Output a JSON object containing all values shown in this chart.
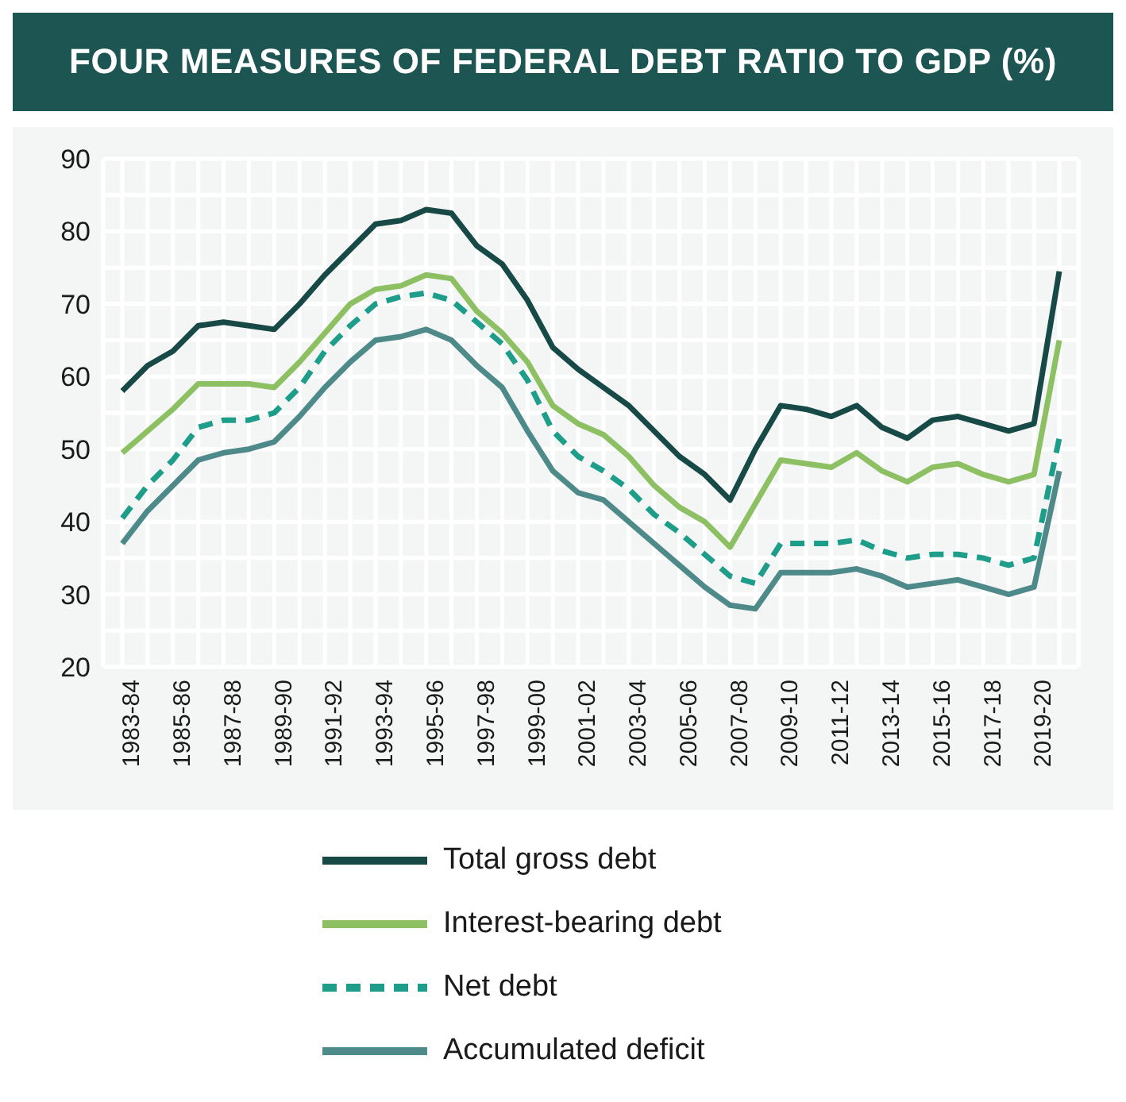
{
  "chart_data": {
    "type": "line",
    "title": "FOUR MEASURES OF FEDERAL DEBT RATIO TO GDP (%)",
    "categories": [
      "1983-84",
      null,
      "1985-86",
      null,
      "1987-88",
      null,
      "1989-90",
      null,
      "1991-92",
      null,
      "1993-94",
      null,
      "1995-96",
      null,
      "1997-98",
      null,
      "1999-00",
      null,
      "2001-02",
      null,
      "2003-04",
      null,
      "2005-06",
      null,
      "2007-08",
      null,
      "2009-10",
      null,
      "2011-12",
      null,
      "2013-14",
      null,
      "2015-16",
      null,
      "2017-18",
      null,
      "2019-20",
      null
    ],
    "series": [
      {
        "name": "Total gross debt",
        "color": "#174a47",
        "line_style": "solid",
        "values": [
          58,
          61.5,
          63.5,
          67,
          67.5,
          67,
          66.5,
          70,
          74,
          77.5,
          81,
          81.5,
          83,
          82.5,
          78,
          75.5,
          70.5,
          64,
          61,
          58.5,
          56,
          52.5,
          49,
          46.5,
          43,
          50,
          56,
          55.5,
          54.5,
          56,
          53,
          51.5,
          54,
          54.5,
          53.5,
          52.5,
          53.5,
          74.5
        ]
      },
      {
        "name": "Interest-bearing debt",
        "color": "#8dc063",
        "line_style": "solid",
        "values": [
          49.5,
          52.5,
          55.5,
          59,
          59,
          59,
          58.5,
          62,
          66,
          70,
          72,
          72.5,
          74,
          73.5,
          69,
          66,
          62,
          56,
          53.5,
          52,
          49,
          45,
          42,
          40,
          36.5,
          42.5,
          48.5,
          48,
          47.5,
          49.5,
          47,
          45.5,
          47.5,
          48,
          46.5,
          45.5,
          46.5,
          65
        ]
      },
      {
        "name": "Net debt",
        "color": "#1e9e8a",
        "line_style": "dashed",
        "values": [
          40.5,
          45,
          48.5,
          53,
          54,
          54,
          55,
          58.5,
          63.5,
          67,
          70,
          71,
          71.5,
          70.5,
          67.5,
          64.5,
          59.5,
          52.5,
          49,
          47,
          44.5,
          41,
          38.5,
          35.5,
          32.5,
          31.5,
          37,
          37,
          37,
          37.5,
          36,
          35,
          35.5,
          35.5,
          35,
          34,
          35,
          51.5
        ]
      },
      {
        "name": "Accumulated deficit",
        "color": "#4e8a8a",
        "line_style": "solid",
        "values": [
          37,
          41.5,
          45,
          48.5,
          49.5,
          50,
          51,
          54.5,
          58.5,
          62,
          65,
          65.5,
          66.5,
          65,
          61.5,
          58.5,
          52.5,
          47,
          44,
          43,
          40,
          37,
          34,
          31,
          28.5,
          28,
          33,
          33,
          33,
          33.5,
          32.5,
          31,
          31.5,
          32,
          31,
          30,
          31,
          47
        ]
      }
    ],
    "ylim": [
      20,
      90
    ],
    "yticks": [
      20,
      {
        "value": 25,
        "label": null
      },
      30,
      {
        "value": 35,
        "label": null
      },
      40,
      {
        "value": 45,
        "label": null
      },
      50,
      {
        "value": 55,
        "label": null
      },
      60,
      {
        "value": 65,
        "label": null
      },
      70,
      {
        "value": 75,
        "label": null
      },
      80,
      {
        "value": 85,
        "label": null
      },
      90
    ],
    "grid": true,
    "legend": "bottom",
    "marker": "none"
  }
}
